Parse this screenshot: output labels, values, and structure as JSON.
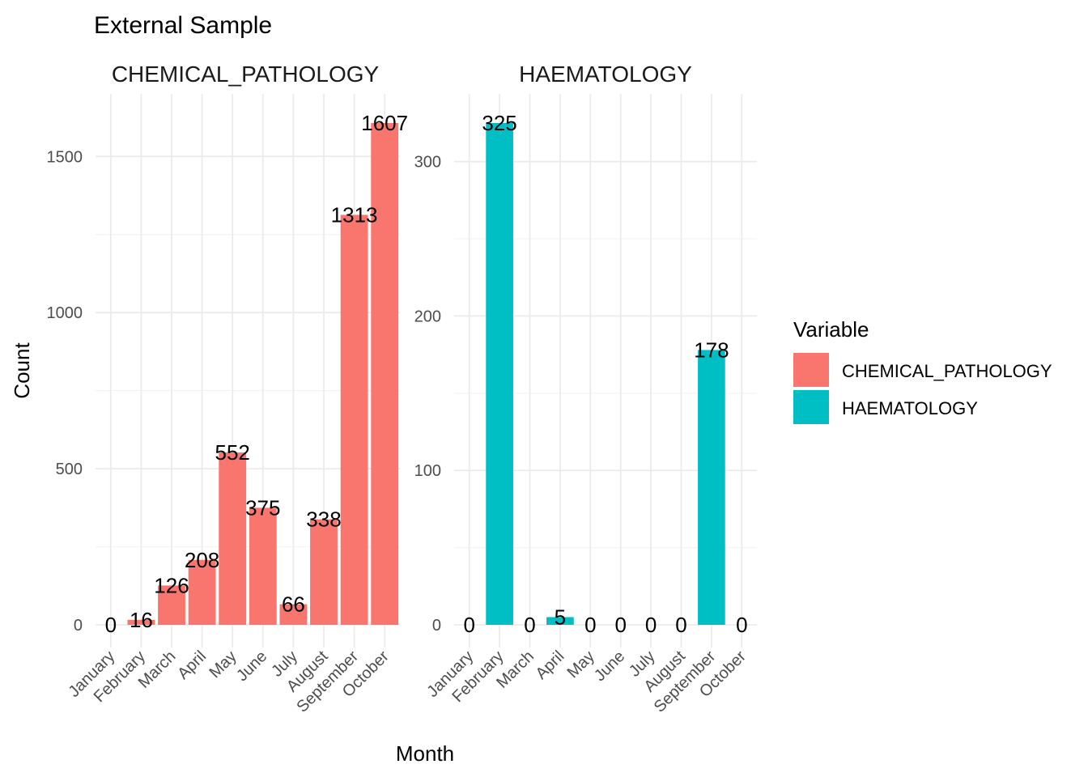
{
  "chart_data": {
    "type": "bar",
    "title": "External Sample",
    "xlabel": "Month",
    "ylabel": "Count",
    "categories": [
      "January",
      "February",
      "March",
      "April",
      "May",
      "June",
      "July",
      "August",
      "September",
      "October"
    ],
    "legend": {
      "title": "Variable",
      "position": "right",
      "entries": [
        {
          "label": "CHEMICAL_PATHOLOGY",
          "color": "#F8766D"
        },
        {
          "label": "HAEMATOLOGY",
          "color": "#00BFC4"
        }
      ]
    },
    "grid": true,
    "facets": [
      {
        "title": "CHEMICAL_PATHOLOGY",
        "series_name": "CHEMICAL_PATHOLOGY",
        "color": "#F8766D",
        "values": [
          0,
          16,
          126,
          208,
          552,
          375,
          66,
          338,
          1313,
          1607
        ],
        "ylim": [
          0,
          1650
        ],
        "yticks": [
          0,
          500,
          1000,
          1500
        ]
      },
      {
        "title": "HAEMATOLOGY",
        "series_name": "HAEMATOLOGY",
        "color": "#00BFC4",
        "values": [
          0,
          325,
          0,
          5,
          0,
          0,
          0,
          0,
          178,
          0
        ],
        "ylim": [
          0,
          340
        ],
        "yticks": [
          0,
          100,
          200,
          300
        ]
      }
    ]
  }
}
